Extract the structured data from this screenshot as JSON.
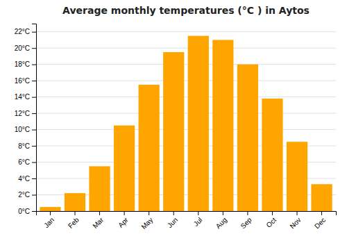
{
  "chart_data": {
    "type": "bar",
    "title": "Average monthly temperatures (°C ) in Aytos",
    "categories": [
      "Jan",
      "Feb",
      "Mar",
      "Apr",
      "May",
      "Jun",
      "Jul",
      "Aug",
      "Sep",
      "Oct",
      "Nov",
      "Dec"
    ],
    "values": [
      0.5,
      2.2,
      5.5,
      10.5,
      15.5,
      19.5,
      21.5,
      21.0,
      18.0,
      13.8,
      8.5,
      3.3
    ],
    "color": "#FFA500",
    "ylim": [
      0,
      23
    ],
    "yticks": [
      {
        "value": 0,
        "label": "0°C"
      },
      {
        "value": 2,
        "label": "2°C"
      },
      {
        "value": 4,
        "label": "4°C"
      },
      {
        "value": 6,
        "label": "6°C"
      },
      {
        "value": 8,
        "label": "8°C"
      },
      {
        "value": 10,
        "label": "10°C"
      },
      {
        "value": 12,
        "label": "12°C"
      },
      {
        "value": 14,
        "label": "14°C"
      },
      {
        "value": 16,
        "label": "16°C"
      },
      {
        "value": 18,
        "label": "18°C"
      },
      {
        "value": 20,
        "label": "20°C"
      },
      {
        "value": 22,
        "label": "22°C"
      }
    ],
    "grid": true
  }
}
